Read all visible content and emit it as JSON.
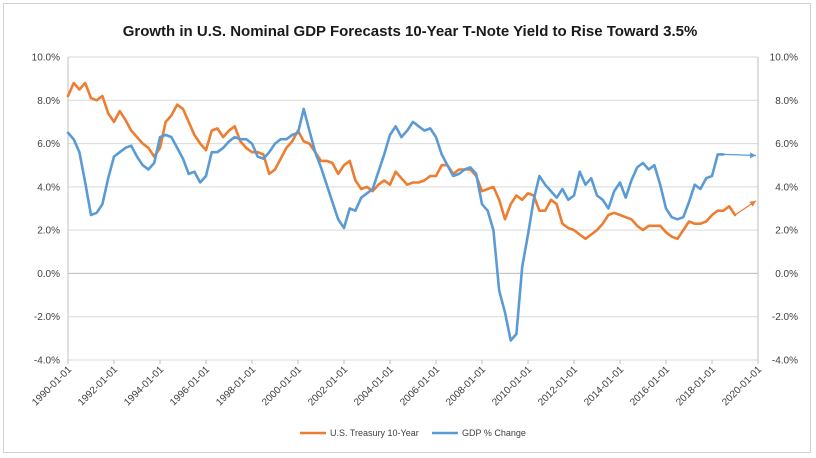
{
  "chart_data": {
    "type": "line",
    "title": "Growth in U.S. Nominal GDP Forecasts 10-Year T-Note Yield to Rise Toward 3.5%",
    "xlabel": "",
    "ylabel": "",
    "y_left_ticks": [
      "10.0%",
      "8.0%",
      "6.0%",
      "4.0%",
      "2.0%",
      "0.0%",
      "-2.0%",
      "-4.0%"
    ],
    "y_right_ticks": [
      "10.0%",
      "8.0%",
      "6.0%",
      "4.0%",
      "2.0%",
      "0.0%",
      "-2.0%",
      "-4.0%"
    ],
    "x_ticks": [
      "1990-01-01",
      "1992-01-01",
      "1994-01-01",
      "1996-01-01",
      "1998-01-01",
      "2000-01-01",
      "2002-01-01",
      "2004-01-01",
      "2006-01-01",
      "2008-01-01",
      "2010-01-01",
      "2012-01-01",
      "2014-01-01",
      "2016-01-01",
      "2018-01-01",
      "2020-01-01"
    ],
    "ylim": [
      -4,
      10
    ],
    "xlim": [
      "1990-01-01",
      "2020-01-01"
    ],
    "grid": "horizontal",
    "legend": "bottom",
    "series": [
      {
        "name": "U.S. Treasury 10-Year",
        "color": "#ED7D31",
        "points": [
          [
            "1990-01-01",
            8.2
          ],
          [
            "1990-04-01",
            8.8
          ],
          [
            "1990-07-01",
            8.5
          ],
          [
            "1990-10-01",
            8.8
          ],
          [
            "1991-01-01",
            8.1
          ],
          [
            "1991-04-01",
            8.0
          ],
          [
            "1991-07-01",
            8.2
          ],
          [
            "1991-10-01",
            7.4
          ],
          [
            "1992-01-01",
            7.0
          ],
          [
            "1992-04-01",
            7.5
          ],
          [
            "1992-07-01",
            7.1
          ],
          [
            "1992-10-01",
            6.6
          ],
          [
            "1993-01-01",
            6.3
          ],
          [
            "1993-04-01",
            6.0
          ],
          [
            "1993-07-01",
            5.8
          ],
          [
            "1993-10-01",
            5.4
          ],
          [
            "1994-01-01",
            5.8
          ],
          [
            "1994-04-01",
            7.0
          ],
          [
            "1994-07-01",
            7.3
          ],
          [
            "1994-10-01",
            7.8
          ],
          [
            "1995-01-01",
            7.6
          ],
          [
            "1995-04-01",
            7.0
          ],
          [
            "1995-07-01",
            6.4
          ],
          [
            "1995-10-01",
            6.0
          ],
          [
            "1996-01-01",
            5.7
          ],
          [
            "1996-04-01",
            6.6
          ],
          [
            "1996-07-01",
            6.7
          ],
          [
            "1996-10-01",
            6.3
          ],
          [
            "1997-01-01",
            6.6
          ],
          [
            "1997-04-01",
            6.8
          ],
          [
            "1997-07-01",
            6.1
          ],
          [
            "1997-10-01",
            5.8
          ],
          [
            "1998-01-01",
            5.6
          ],
          [
            "1998-04-01",
            5.6
          ],
          [
            "1998-07-01",
            5.5
          ],
          [
            "1998-10-01",
            4.6
          ],
          [
            "1999-01-01",
            4.8
          ],
          [
            "1999-04-01",
            5.3
          ],
          [
            "1999-07-01",
            5.8
          ],
          [
            "1999-10-01",
            6.1
          ],
          [
            "2000-01-01",
            6.6
          ],
          [
            "2000-04-01",
            6.1
          ],
          [
            "2000-07-01",
            6.0
          ],
          [
            "2000-10-01",
            5.6
          ],
          [
            "2001-01-01",
            5.2
          ],
          [
            "2001-04-01",
            5.2
          ],
          [
            "2001-07-01",
            5.1
          ],
          [
            "2001-10-01",
            4.6
          ],
          [
            "2002-01-01",
            5.0
          ],
          [
            "2002-04-01",
            5.2
          ],
          [
            "2002-07-01",
            4.3
          ],
          [
            "2002-10-01",
            3.9
          ],
          [
            "2003-01-01",
            4.0
          ],
          [
            "2003-04-01",
            3.8
          ],
          [
            "2003-07-01",
            4.1
          ],
          [
            "2003-10-01",
            4.3
          ],
          [
            "2004-01-01",
            4.1
          ],
          [
            "2004-04-01",
            4.7
          ],
          [
            "2004-07-01",
            4.4
          ],
          [
            "2004-10-01",
            4.1
          ],
          [
            "2005-01-01",
            4.2
          ],
          [
            "2005-04-01",
            4.2
          ],
          [
            "2005-07-01",
            4.3
          ],
          [
            "2005-10-01",
            4.5
          ],
          [
            "2006-01-01",
            4.5
          ],
          [
            "2006-04-01",
            5.0
          ],
          [
            "2006-07-01",
            5.0
          ],
          [
            "2006-10-01",
            4.6
          ],
          [
            "2007-01-01",
            4.8
          ],
          [
            "2007-04-01",
            4.8
          ],
          [
            "2007-07-01",
            4.8
          ],
          [
            "2007-10-01",
            4.5
          ],
          [
            "2008-01-01",
            3.8
          ],
          [
            "2008-04-01",
            3.9
          ],
          [
            "2008-07-01",
            4.0
          ],
          [
            "2008-10-01",
            3.4
          ],
          [
            "2009-01-01",
            2.5
          ],
          [
            "2009-04-01",
            3.2
          ],
          [
            "2009-07-01",
            3.6
          ],
          [
            "2009-10-01",
            3.4
          ],
          [
            "2010-01-01",
            3.7
          ],
          [
            "2010-04-01",
            3.6
          ],
          [
            "2010-07-01",
            2.9
          ],
          [
            "2010-10-01",
            2.9
          ],
          [
            "2011-01-01",
            3.4
          ],
          [
            "2011-04-01",
            3.2
          ],
          [
            "2011-07-01",
            2.3
          ],
          [
            "2011-10-01",
            2.1
          ],
          [
            "2012-01-01",
            2.0
          ],
          [
            "2012-04-01",
            1.8
          ],
          [
            "2012-07-01",
            1.6
          ],
          [
            "2012-10-01",
            1.8
          ],
          [
            "2013-01-01",
            2.0
          ],
          [
            "2013-04-01",
            2.3
          ],
          [
            "2013-07-01",
            2.7
          ],
          [
            "2013-10-01",
            2.8
          ],
          [
            "2014-01-01",
            2.7
          ],
          [
            "2014-04-01",
            2.6
          ],
          [
            "2014-07-01",
            2.5
          ],
          [
            "2014-10-01",
            2.2
          ],
          [
            "2015-01-01",
            2.0
          ],
          [
            "2015-04-01",
            2.2
          ],
          [
            "2015-07-01",
            2.2
          ],
          [
            "2015-10-01",
            2.2
          ],
          [
            "2016-01-01",
            1.9
          ],
          [
            "2016-04-01",
            1.7
          ],
          [
            "2016-07-01",
            1.6
          ],
          [
            "2016-10-01",
            2.0
          ],
          [
            "2017-01-01",
            2.4
          ],
          [
            "2017-04-01",
            2.3
          ],
          [
            "2017-07-01",
            2.3
          ],
          [
            "2017-10-01",
            2.4
          ],
          [
            "2018-01-01",
            2.7
          ],
          [
            "2018-04-01",
            2.9
          ],
          [
            "2018-07-01",
            2.9
          ],
          [
            "2018-10-01",
            3.1
          ],
          [
            "2019-01-01",
            2.7
          ]
        ],
        "projection": [
          [
            "2019-01-01",
            2.7
          ],
          [
            "2020-01-01",
            3.35
          ]
        ]
      },
      {
        "name": "GDP % Change",
        "color": "#5B9BD5",
        "points": [
          [
            "1990-01-01",
            6.5
          ],
          [
            "1990-04-01",
            6.2
          ],
          [
            "1990-07-01",
            5.6
          ],
          [
            "1990-10-01",
            4.2
          ],
          [
            "1991-01-01",
            2.7
          ],
          [
            "1991-04-01",
            2.8
          ],
          [
            "1991-07-01",
            3.2
          ],
          [
            "1991-10-01",
            4.4
          ],
          [
            "1992-01-01",
            5.4
          ],
          [
            "1992-04-01",
            5.6
          ],
          [
            "1992-07-01",
            5.8
          ],
          [
            "1992-10-01",
            5.9
          ],
          [
            "1993-01-01",
            5.4
          ],
          [
            "1993-04-01",
            5.0
          ],
          [
            "1993-07-01",
            4.8
          ],
          [
            "1993-10-01",
            5.1
          ],
          [
            "1994-01-01",
            6.3
          ],
          [
            "1994-04-01",
            6.4
          ],
          [
            "1994-07-01",
            6.3
          ],
          [
            "1994-10-01",
            5.8
          ],
          [
            "1995-01-01",
            5.3
          ],
          [
            "1995-04-01",
            4.6
          ],
          [
            "1995-07-01",
            4.7
          ],
          [
            "1995-10-01",
            4.2
          ],
          [
            "1996-01-01",
            4.5
          ],
          [
            "1996-04-01",
            5.6
          ],
          [
            "1996-07-01",
            5.6
          ],
          [
            "1996-10-01",
            5.8
          ],
          [
            "1997-01-01",
            6.1
          ],
          [
            "1997-04-01",
            6.3
          ],
          [
            "1997-07-01",
            6.2
          ],
          [
            "1997-10-01",
            6.2
          ],
          [
            "1998-01-01",
            6.0
          ],
          [
            "1998-04-01",
            5.4
          ],
          [
            "1998-07-01",
            5.3
          ],
          [
            "1998-10-01",
            5.6
          ],
          [
            "1999-01-01",
            6.0
          ],
          [
            "1999-04-01",
            6.2
          ],
          [
            "1999-07-01",
            6.2
          ],
          [
            "1999-10-01",
            6.4
          ],
          [
            "2000-01-01",
            6.5
          ],
          [
            "2000-04-01",
            7.6
          ],
          [
            "2000-07-01",
            6.6
          ],
          [
            "2000-10-01",
            5.6
          ],
          [
            "2001-01-01",
            4.9
          ],
          [
            "2001-04-01",
            4.1
          ],
          [
            "2001-07-01",
            3.3
          ],
          [
            "2001-10-01",
            2.5
          ],
          [
            "2002-01-01",
            2.1
          ],
          [
            "2002-04-01",
            3.0
          ],
          [
            "2002-07-01",
            2.9
          ],
          [
            "2002-10-01",
            3.5
          ],
          [
            "2003-01-01",
            3.7
          ],
          [
            "2003-04-01",
            3.9
          ],
          [
            "2003-07-01",
            4.7
          ],
          [
            "2003-10-01",
            5.5
          ],
          [
            "2004-01-01",
            6.4
          ],
          [
            "2004-04-01",
            6.8
          ],
          [
            "2004-07-01",
            6.3
          ],
          [
            "2004-10-01",
            6.6
          ],
          [
            "2005-01-01",
            7.0
          ],
          [
            "2005-04-01",
            6.8
          ],
          [
            "2005-07-01",
            6.6
          ],
          [
            "2005-10-01",
            6.7
          ],
          [
            "2006-01-01",
            6.3
          ],
          [
            "2006-04-01",
            5.5
          ],
          [
            "2006-07-01",
            5.0
          ],
          [
            "2006-10-01",
            4.5
          ],
          [
            "2007-01-01",
            4.6
          ],
          [
            "2007-04-01",
            4.8
          ],
          [
            "2007-07-01",
            4.9
          ],
          [
            "2007-10-01",
            4.6
          ],
          [
            "2008-01-01",
            3.2
          ],
          [
            "2008-04-01",
            2.9
          ],
          [
            "2008-07-01",
            2.0
          ],
          [
            "2008-10-01",
            -0.8
          ],
          [
            "2009-01-01",
            -1.8
          ],
          [
            "2009-04-01",
            -3.1
          ],
          [
            "2009-07-01",
            -2.8
          ],
          [
            "2009-10-01",
            0.3
          ],
          [
            "2010-01-01",
            1.8
          ],
          [
            "2010-04-01",
            3.4
          ],
          [
            "2010-07-01",
            4.5
          ],
          [
            "2010-10-01",
            4.1
          ],
          [
            "2011-01-01",
            3.8
          ],
          [
            "2011-04-01",
            3.5
          ],
          [
            "2011-07-01",
            3.9
          ],
          [
            "2011-10-01",
            3.4
          ],
          [
            "2012-01-01",
            3.6
          ],
          [
            "2012-04-01",
            4.7
          ],
          [
            "2012-07-01",
            4.1
          ],
          [
            "2012-10-01",
            4.4
          ],
          [
            "2013-01-01",
            3.6
          ],
          [
            "2013-04-01",
            3.4
          ],
          [
            "2013-07-01",
            3.0
          ],
          [
            "2013-10-01",
            3.8
          ],
          [
            "2014-01-01",
            4.2
          ],
          [
            "2014-04-01",
            3.5
          ],
          [
            "2014-07-01",
            4.3
          ],
          [
            "2014-10-01",
            4.9
          ],
          [
            "2015-01-01",
            5.1
          ],
          [
            "2015-04-01",
            4.8
          ],
          [
            "2015-07-01",
            5.0
          ],
          [
            "2015-10-01",
            4.1
          ],
          [
            "2016-01-01",
            3.0
          ],
          [
            "2016-04-01",
            2.6
          ],
          [
            "2016-07-01",
            2.5
          ],
          [
            "2016-10-01",
            2.6
          ],
          [
            "2017-01-01",
            3.3
          ],
          [
            "2017-04-01",
            4.1
          ],
          [
            "2017-07-01",
            3.9
          ],
          [
            "2017-10-01",
            4.4
          ],
          [
            "2018-01-01",
            4.5
          ],
          [
            "2018-04-01",
            5.5
          ],
          [
            "2018-07-01",
            5.5
          ]
        ],
        "projection": [
          [
            "2018-07-01",
            5.5
          ],
          [
            "2020-01-01",
            5.45
          ]
        ]
      }
    ]
  }
}
